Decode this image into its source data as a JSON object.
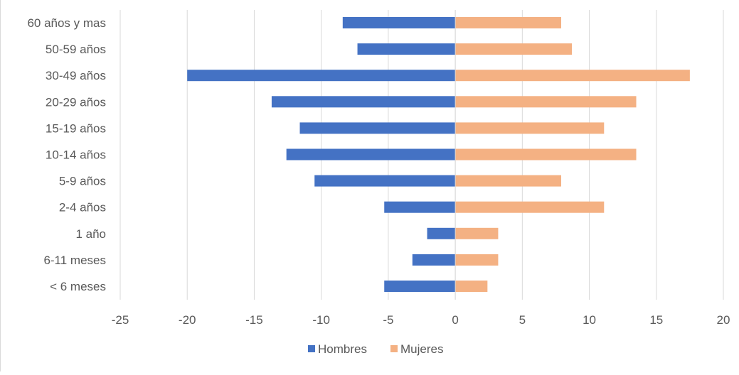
{
  "chart_data": {
    "type": "bar",
    "orientation": "horizontal",
    "categories": [
      "60 años y mas",
      "50-59 años",
      "30-49 años",
      "20-29 años",
      "15-19 años",
      "10-14 años",
      "5-9 años",
      "2-4 años",
      "1 año",
      "6-11 meses",
      "< 6 meses"
    ],
    "series": [
      {
        "name": "Hombres",
        "color": "#4472C4",
        "values": [
          -8.4,
          -7.3,
          -20,
          -13.7,
          -11.6,
          -12.6,
          -10.5,
          -5.3,
          -2.1,
          -3.2,
          -5.3
        ]
      },
      {
        "name": "Mujeres",
        "color": "#F4B183",
        "values": [
          7.9,
          8.7,
          17.5,
          13.5,
          11.1,
          13.5,
          7.9,
          11.1,
          3.2,
          3.2,
          2.4
        ]
      }
    ],
    "xlim": [
      -25,
      20
    ],
    "x_ticks": [
      -25,
      -20,
      -15,
      -10,
      -5,
      0,
      5,
      10,
      15,
      20
    ],
    "x_tick_labels": [
      "-25",
      "-20",
      "-15",
      "-10",
      "-5",
      "0",
      "5",
      "10",
      "15",
      "20"
    ],
    "grid": true,
    "legend_position": "bottom",
    "title": "",
    "xlabel": "",
    "ylabel": ""
  }
}
